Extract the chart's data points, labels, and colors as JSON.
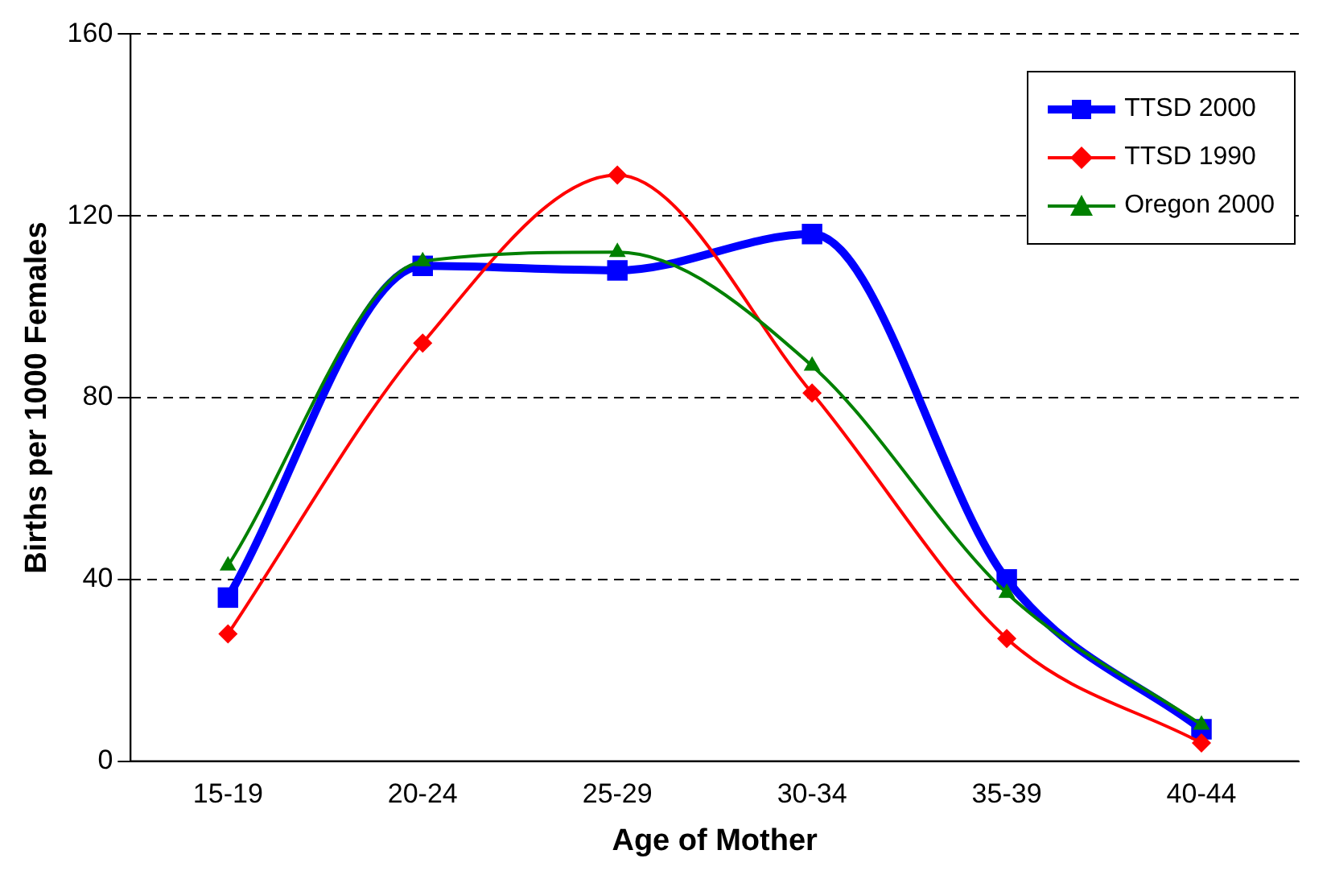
{
  "chart_data": {
    "type": "line",
    "xlabel": "Age of Mother",
    "ylabel": "Births per 1000 Females",
    "categories": [
      "15-19",
      "20-24",
      "25-29",
      "30-34",
      "35-39",
      "40-44"
    ],
    "series": [
      {
        "name": "TTSD 2000",
        "color": "#0000ff",
        "marker": "square",
        "values": [
          36,
          109,
          108,
          116,
          40,
          7
        ]
      },
      {
        "name": "TTSD 1990",
        "color": "#ff0000",
        "marker": "diamond",
        "values": [
          28,
          92,
          129,
          81,
          27,
          4
        ]
      },
      {
        "name": "Oregon 2000",
        "color": "#008000",
        "marker": "triangle",
        "values": [
          43,
          110,
          112,
          87,
          37,
          8
        ]
      }
    ],
    "ylim": [
      0,
      160
    ],
    "yticks": [
      0,
      40,
      80,
      120,
      160
    ],
    "grid": "y",
    "legend": "top right"
  }
}
